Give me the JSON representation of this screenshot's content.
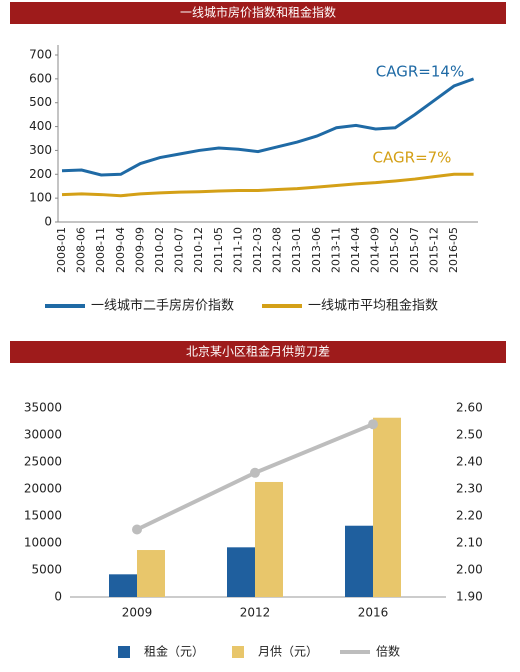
{
  "chart_data": [
    {
      "type": "line",
      "title": "一线城市房价指数和租金指数",
      "categories": [
        "2008-01",
        "2008-06",
        "2008-11",
        "2009-04",
        "2009-09",
        "2010-02",
        "2010-07",
        "2010-12",
        "2011-05",
        "2011-10",
        "2012-03",
        "2012-08",
        "2013-01",
        "2013-06",
        "2013-11",
        "2014-04",
        "2014-09",
        "2015-02",
        "2015-07",
        "2015-12",
        "2016-05",
        null
      ],
      "series": [
        {
          "name": "一线城市二手房房价指数",
          "color": "#1f6aa5",
          "values": [
            215,
            218,
            197,
            200,
            245,
            270,
            285,
            300,
            310,
            305,
            295,
            315,
            335,
            360,
            395,
            405,
            390,
            395,
            450,
            510,
            570,
            600
          ]
        },
        {
          "name": "一线城市平均租金指数",
          "color": "#d4a017",
          "values": [
            115,
            118,
            115,
            110,
            118,
            122,
            125,
            127,
            130,
            132,
            132,
            136,
            140,
            146,
            153,
            160,
            165,
            172,
            180,
            190,
            200,
            200
          ]
        }
      ],
      "ylim": [
        0,
        700
      ],
      "yticks": [
        0,
        100,
        200,
        300,
        400,
        500,
        600,
        700
      ],
      "annotations": [
        "CAGR=14%",
        "CAGR=7%"
      ]
    },
    {
      "type": "bar",
      "title": "北京某小区租金月供剪刀差",
      "categories": [
        "2009",
        "2012",
        "2016"
      ],
      "series": [
        {
          "name": "租金（元）",
          "color": "#1f5f9e",
          "values": [
            4200,
            9200,
            13200
          ]
        },
        {
          "name": "月供（元）",
          "color": "#e8c66b",
          "values": [
            8700,
            21300,
            33200
          ]
        },
        {
          "name": "倍数",
          "color": "#bdbdbd",
          "axis": "y2",
          "values": [
            2.15,
            2.36,
            2.54
          ]
        }
      ],
      "ylim": [
        0,
        35000
      ],
      "yticks": [
        0,
        5000,
        10000,
        15000,
        20000,
        25000,
        30000,
        35000
      ],
      "y2lim": [
        1.9,
        2.6
      ],
      "y2ticks": [
        {
          "value": 1.9,
          "label": "1.90"
        },
        {
          "value": 2.0,
          "label": "2.00"
        },
        {
          "value": 2.1,
          "label": "2.10"
        },
        {
          "value": 2.2,
          "label": "2.20"
        },
        {
          "value": 2.3,
          "label": "2.30"
        },
        {
          "value": 2.4,
          "label": "2.40"
        },
        {
          "value": 2.5,
          "label": "2.50"
        },
        {
          "value": 2.6,
          "label": "2.60"
        }
      ]
    }
  ]
}
